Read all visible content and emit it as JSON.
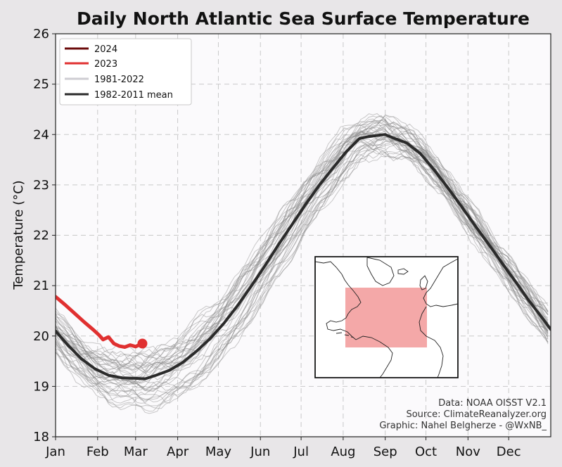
{
  "chart_data": {
    "type": "line",
    "title": "Daily North Atlantic Sea Surface Temperature",
    "xlabel": "",
    "ylabel": "Temperature (°C)",
    "x_tick_labels": [
      "Jan",
      "Feb",
      "Mar",
      "Apr",
      "May",
      "Jun",
      "Jul",
      "Aug",
      "Sep",
      "Oct",
      "Nov",
      "Dec"
    ],
    "x_tick_days": [
      1,
      32,
      60,
      91,
      121,
      152,
      182,
      213,
      244,
      274,
      305,
      335
    ],
    "xlim": [
      1,
      366
    ],
    "y_ticks": [
      18,
      19,
      20,
      21,
      22,
      23,
      24,
      25,
      26
    ],
    "ylim": [
      18,
      26
    ],
    "grid": true,
    "legend": {
      "placement": "top-left",
      "entries": [
        {
          "label": "2024",
          "color": "#6b0b0b"
        },
        {
          "label": "2023",
          "color": "#e03030"
        },
        {
          "label": "1981-2022",
          "color": "#cfcdd3"
        },
        {
          "label": "1982-2011 mean",
          "color": "#2b2b2b"
        }
      ]
    },
    "series": [
      {
        "name": "2023",
        "color": "#e03030",
        "x": [
          1,
          8,
          15,
          22,
          29,
          33,
          36,
          40,
          44,
          48,
          52,
          56,
          60,
          64,
          65
        ],
        "values": [
          20.78,
          20.62,
          20.45,
          20.28,
          20.12,
          20.02,
          19.93,
          19.98,
          19.85,
          19.8,
          19.78,
          19.82,
          19.79,
          19.84,
          19.85
        ]
      },
      {
        "name": "1982-2011 mean",
        "color": "#2b2b2b",
        "x": [
          1,
          10,
          20,
          30,
          40,
          50,
          60,
          67,
          75,
          85,
          95,
          105,
          115,
          125,
          135,
          145,
          155,
          165,
          175,
          185,
          195,
          205,
          215,
          225,
          232,
          240,
          244,
          250,
          260,
          270,
          280,
          290,
          300,
          310,
          320,
          330,
          340,
          350,
          360,
          366
        ],
        "values": [
          20.1,
          19.82,
          19.55,
          19.35,
          19.22,
          19.17,
          19.16,
          19.15,
          19.22,
          19.32,
          19.48,
          19.7,
          19.95,
          20.25,
          20.6,
          20.98,
          21.38,
          21.8,
          22.2,
          22.6,
          22.98,
          23.32,
          23.65,
          23.92,
          23.96,
          23.99,
          24.0,
          23.93,
          23.83,
          23.62,
          23.3,
          22.95,
          22.58,
          22.2,
          21.83,
          21.45,
          21.08,
          20.7,
          20.35,
          20.13
        ]
      }
    ],
    "historical_range": {
      "name": "1981-2022",
      "color": "#8a8a8a",
      "line_count": 42,
      "approx_spread_degC": 0.8
    },
    "inset_map": {
      "description_region": "North Atlantic",
      "highlight_color": "#f4a8a8"
    },
    "credits": [
      "Data: NOAA OISST V2.1",
      "Source: ClimateReanalyzer.org",
      "Graphic: Nahel Belgherze - @WxNB_"
    ]
  }
}
